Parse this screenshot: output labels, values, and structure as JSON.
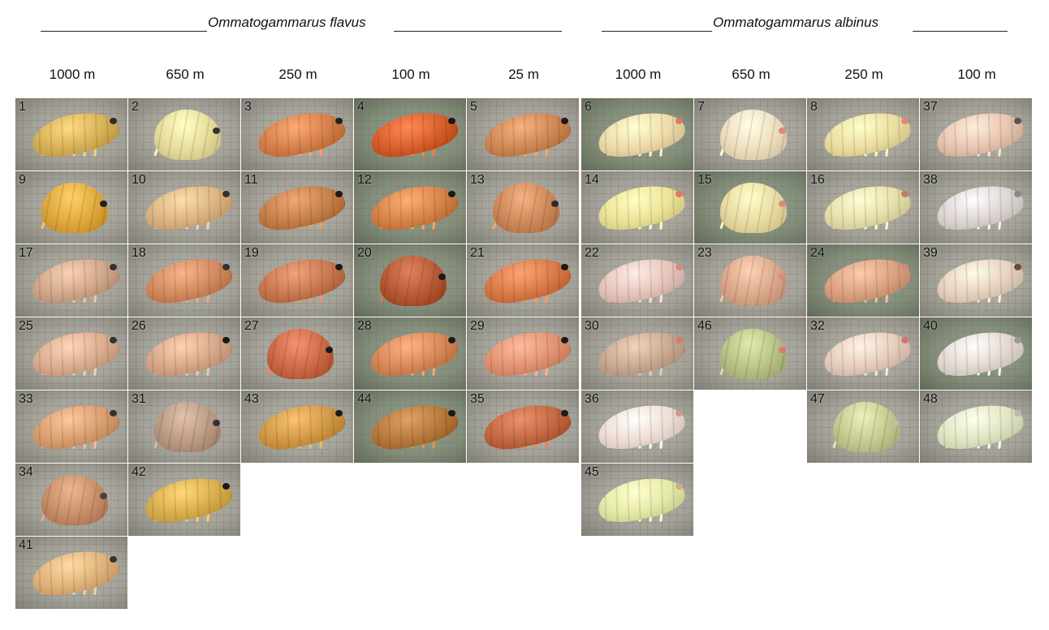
{
  "species": [
    {
      "name": "Ommatogammarus flavus",
      "depths": [
        "1000 m",
        "650 m",
        "250 m",
        "100 m",
        "25 m"
      ]
    },
    {
      "name": "Ommatogammarus albinus",
      "depths": [
        "1000 m",
        "650 m",
        "250 m",
        "100 m"
      ]
    }
  ],
  "colors": {
    "flavus_yellow": "#d9b24a",
    "flavus_orange": "#d77a45",
    "flavus_pink": "#d99a82",
    "albinus_cream": "#ece3bf",
    "albinus_pink": "#e5c6b6",
    "albinus_green": "#c9cf9a",
    "paper_bg": "#9fa39a",
    "grid_line": "#b4463c"
  },
  "specimens": [
    {
      "label": "1",
      "species": 0,
      "col": 0,
      "row": 0,
      "tone": "#d8b35a",
      "eye": "#3a2a20"
    },
    {
      "label": "2",
      "species": 0,
      "col": 1,
      "row": 0,
      "tone": "#e7dd9c",
      "eye": "#333333"
    },
    {
      "label": "3",
      "species": 0,
      "col": 2,
      "row": 0,
      "tone": "#d7824d",
      "eye": "#222222"
    },
    {
      "label": "4",
      "species": 0,
      "col": 3,
      "row": 0,
      "tone": "#d9612e",
      "eye": "#1a1a1a"
    },
    {
      "label": "5",
      "species": 0,
      "col": 4,
      "row": 0,
      "tone": "#cf8a57",
      "eye": "#1a1a1a"
    },
    {
      "label": "9",
      "species": 0,
      "col": 0,
      "row": 1,
      "tone": "#e0a93f",
      "eye": "#1f1f2a"
    },
    {
      "label": "10",
      "species": 0,
      "col": 1,
      "row": 1,
      "tone": "#ddb584",
      "eye": "#333333"
    },
    {
      "label": "11",
      "species": 0,
      "col": 2,
      "row": 1,
      "tone": "#c8804c",
      "eye": "#1a1a1a"
    },
    {
      "label": "12",
      "species": 0,
      "col": 3,
      "row": 1,
      "tone": "#d8854c",
      "eye": "#1a1a1a"
    },
    {
      "label": "13",
      "species": 0,
      "col": 4,
      "row": 1,
      "tone": "#cf8a5c",
      "eye": "#2a2a2a"
    },
    {
      "label": "17",
      "species": 0,
      "col": 0,
      "row": 2,
      "tone": "#d2a98c",
      "eye": "#333333"
    },
    {
      "label": "18",
      "species": 0,
      "col": 1,
      "row": 2,
      "tone": "#d38c62",
      "eye": "#333333"
    },
    {
      "label": "19",
      "species": 0,
      "col": 2,
      "row": 2,
      "tone": "#c97a52",
      "eye": "#1a1a1a"
    },
    {
      "label": "20",
      "species": 0,
      "col": 3,
      "row": 2,
      "tone": "#b85a36",
      "eye": "#1a1a1a"
    },
    {
      "label": "21",
      "species": 0,
      "col": 4,
      "row": 2,
      "tone": "#d97c4a",
      "eye": "#1a1a1a"
    },
    {
      "label": "25",
      "species": 0,
      "col": 0,
      "row": 3,
      "tone": "#dcae92",
      "eye": "#333333"
    },
    {
      "label": "26",
      "species": 0,
      "col": 1,
      "row": 3,
      "tone": "#d8a98a",
      "eye": "#1a1a1a"
    },
    {
      "label": "27",
      "species": 0,
      "col": 2,
      "row": 3,
      "tone": "#cd6a48",
      "eye": "#1a1a1a"
    },
    {
      "label": "28",
      "species": 0,
      "col": 3,
      "row": 3,
      "tone": "#d98a5a",
      "eye": "#1a1a1a"
    },
    {
      "label": "29",
      "species": 0,
      "col": 4,
      "row": 3,
      "tone": "#e39474",
      "eye": "#1a1a1a"
    },
    {
      "label": "33",
      "species": 0,
      "col": 0,
      "row": 4,
      "tone": "#d9a072",
      "eye": "#333333"
    },
    {
      "label": "31",
      "species": 0,
      "col": 1,
      "row": 4,
      "tone": "#bb9a86",
      "eye": "#333333"
    },
    {
      "label": "43",
      "species": 0,
      "col": 2,
      "row": 4,
      "tone": "#d39a4a",
      "eye": "#1a1a1a"
    },
    {
      "label": "44",
      "species": 0,
      "col": 3,
      "row": 4,
      "tone": "#b87a3e",
      "eye": "#1a1a1a"
    },
    {
      "label": "35",
      "species": 0,
      "col": 4,
      "row": 4,
      "tone": "#c46a44",
      "eye": "#1a1a1a"
    },
    {
      "label": "34",
      "species": 0,
      "col": 0,
      "row": 5,
      "tone": "#c88f6a",
      "eye": "#444444"
    },
    {
      "label": "42",
      "species": 0,
      "col": 1,
      "row": 5,
      "tone": "#d9b050",
      "eye": "#1a1a1a"
    },
    {
      "label": "41",
      "species": 0,
      "col": 0,
      "row": 6,
      "tone": "#e0b47c",
      "eye": "#333333"
    },
    {
      "label": "6",
      "species": 1,
      "col": 0,
      "row": 0,
      "tone": "#efdcaa",
      "eye": "#e0786a"
    },
    {
      "label": "7",
      "species": 1,
      "col": 1,
      "row": 0,
      "tone": "#eedfbf",
      "eye": "#d98a7a"
    },
    {
      "label": "8",
      "species": 1,
      "col": 2,
      "row": 0,
      "tone": "#ebdfa2",
      "eye": "#d98a7a"
    },
    {
      "label": "37",
      "species": 1,
      "col": 3,
      "row": 0,
      "tone": "#e8c6b2",
      "eye": "#555555"
    },
    {
      "label": "14",
      "species": 1,
      "col": 0,
      "row": 1,
      "tone": "#ece49a",
      "eye": "#e0786a"
    },
    {
      "label": "15",
      "species": 1,
      "col": 1,
      "row": 1,
      "tone": "#e9dca3",
      "eye": "#d98a7a"
    },
    {
      "label": "16",
      "species": 1,
      "col": 2,
      "row": 1,
      "tone": "#e6e0ad",
      "eye": "#c8786a"
    },
    {
      "label": "38",
      "species": 1,
      "col": 3,
      "row": 1,
      "tone": "#dfd6d6",
      "eye": "#888888"
    },
    {
      "label": "22",
      "species": 1,
      "col": 0,
      "row": 2,
      "tone": "#e6c6bd",
      "eye": "#d98a7a"
    },
    {
      "label": "23",
      "species": 1,
      "col": 1,
      "row": 2,
      "tone": "#dba98c",
      "eye": "#d98a7a"
    },
    {
      "label": "24",
      "species": 1,
      "col": 2,
      "row": 2,
      "tone": "#dca383",
      "eye": "#d98a7a"
    },
    {
      "label": "39",
      "species": 1,
      "col": 3,
      "row": 2,
      "tone": "#e7d3c0",
      "eye": "#6a4a3a"
    },
    {
      "label": "30",
      "species": 1,
      "col": 0,
      "row": 3,
      "tone": "#c9ab94",
      "eye": "#e0786a"
    },
    {
      "label": "46",
      "species": 1,
      "col": 1,
      "row": 3,
      "tone": "#b9c287",
      "eye": "#e0786a"
    },
    {
      "label": "32",
      "species": 1,
      "col": 2,
      "row": 3,
      "tone": "#e7cdbd",
      "eye": "#d9707a"
    },
    {
      "label": "40",
      "species": 1,
      "col": 3,
      "row": 3,
      "tone": "#e4dad3",
      "eye": "#999999"
    },
    {
      "label": "36",
      "species": 1,
      "col": 0,
      "row": 4,
      "tone": "#efdfd6",
      "eye": "#cc9a8a"
    },
    {
      "label": "47",
      "species": 1,
      "col": 2,
      "row": 4,
      "tone": "#c7c992",
      "eye": "#bfbfa0"
    },
    {
      "label": "48",
      "species": 1,
      "col": 3,
      "row": 4,
      "tone": "#e2e6c4",
      "eye": "#bbbbaa"
    },
    {
      "label": "45",
      "species": 1,
      "col": 0,
      "row": 5,
      "tone": "#e6eaa8",
      "eye": "#c4b08a"
    }
  ]
}
